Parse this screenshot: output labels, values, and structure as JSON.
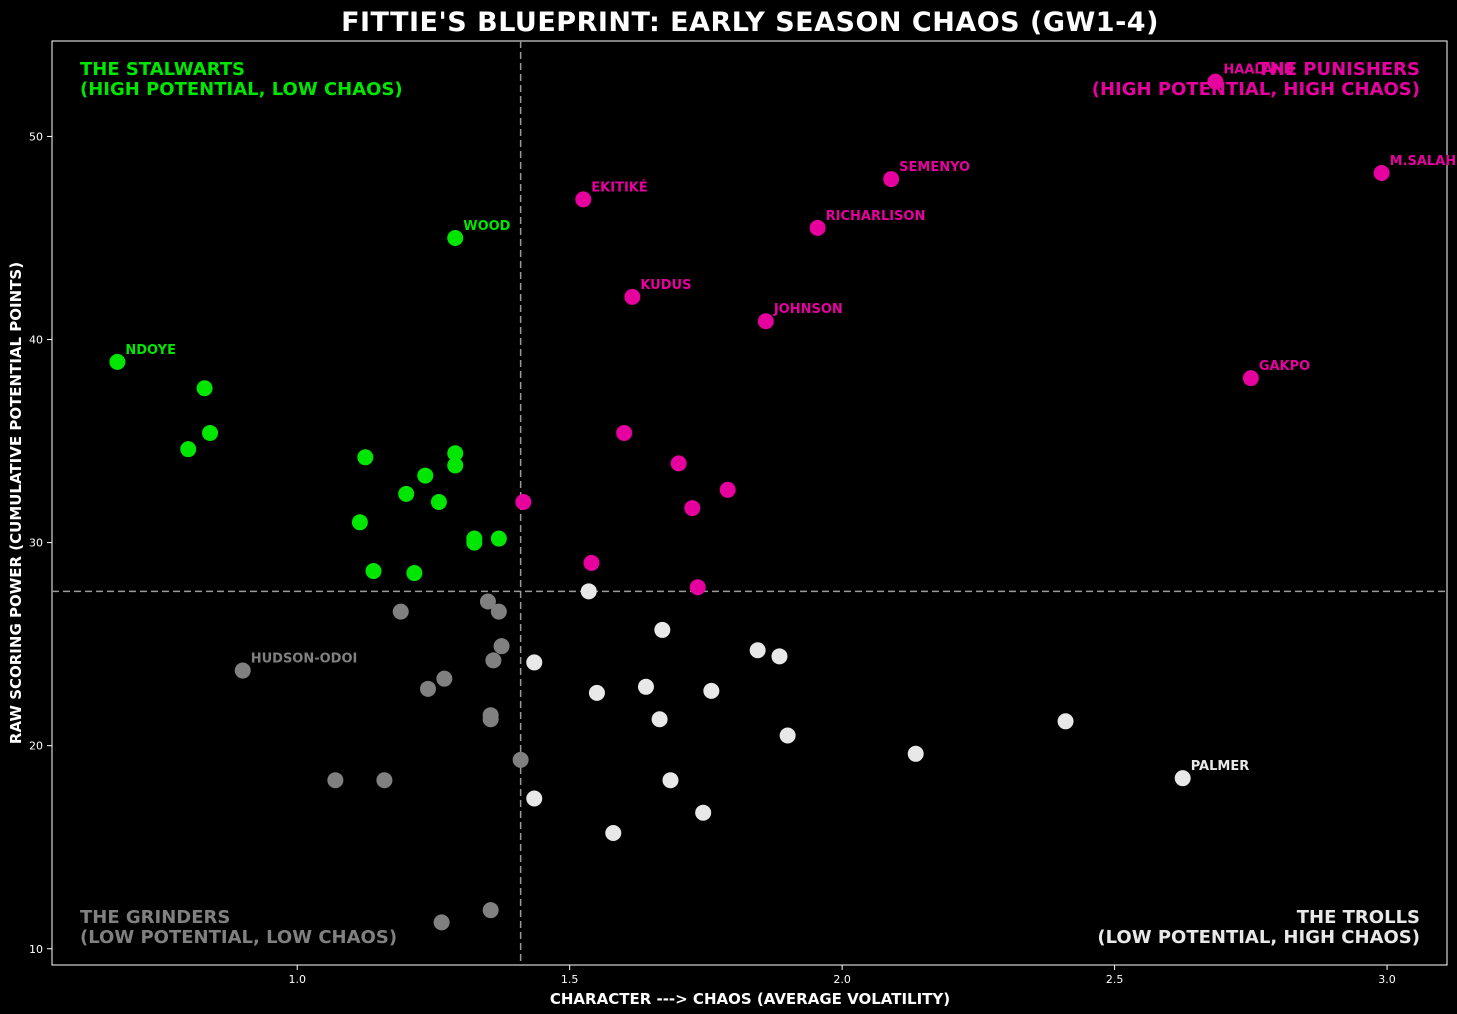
{
  "chart_data": {
    "type": "scatter",
    "title": "FITTIE'S BLUEPRINT: EARLY SEASON CHAOS (GW1-4)",
    "xlabel": "CHARACTER ---> CHAOS (AVERAGE VOLATILITY)",
    "ylabel": "RAW SCORING POWER (CUMULATIVE POTENTIAL POINTS)",
    "xlim": [
      0.55,
      3.11
    ],
    "ylim": [
      9.2,
      54.7
    ],
    "xticks": [
      1.0,
      1.5,
      2.0,
      2.5,
      3.0
    ],
    "xtick_labels": [
      "1.0",
      "1.5",
      "2.0",
      "2.5",
      "3.0"
    ],
    "yticks": [
      10,
      20,
      30,
      40,
      50
    ],
    "ytick_labels": [
      "10",
      "20",
      "30",
      "40",
      "50"
    ],
    "grid": false,
    "reference_lines": {
      "x": 1.41,
      "y": 27.6
    },
    "colors": {
      "stalwarts": "#00e600",
      "punishers": "#e6009e",
      "grinders": "#808080",
      "trolls": "#e8e8e8"
    },
    "quadrants": [
      {
        "key": "stalwarts",
        "line1": "THE STALWARTS",
        "line2": "(HIGH POTENTIAL, LOW CHAOS)",
        "position": "top-left"
      },
      {
        "key": "punishers",
        "line1": "THE PUNISHERS",
        "line2": "(HIGH POTENTIAL, HIGH CHAOS)",
        "position": "top-right"
      },
      {
        "key": "grinders",
        "line1": "THE GRINDERS",
        "line2": "(LOW POTENTIAL, LOW CHAOS)",
        "position": "bottom-left"
      },
      {
        "key": "trolls",
        "line1": "THE TROLLS",
        "line2": "(LOW POTENTIAL, HIGH CHAOS)",
        "position": "bottom-right"
      }
    ],
    "points": [
      {
        "x": 0.67,
        "y": 38.9,
        "group": "stalwarts",
        "label": "NDOYE"
      },
      {
        "x": 0.83,
        "y": 37.6,
        "group": "stalwarts"
      },
      {
        "x": 0.8,
        "y": 34.6,
        "group": "stalwarts"
      },
      {
        "x": 0.84,
        "y": 35.4,
        "group": "stalwarts"
      },
      {
        "x": 1.29,
        "y": 45.0,
        "group": "stalwarts",
        "label": "WOOD"
      },
      {
        "x": 1.125,
        "y": 34.2,
        "group": "stalwarts"
      },
      {
        "x": 1.29,
        "y": 34.4,
        "group": "stalwarts"
      },
      {
        "x": 1.29,
        "y": 33.8,
        "group": "stalwarts"
      },
      {
        "x": 1.235,
        "y": 33.3,
        "group": "stalwarts"
      },
      {
        "x": 1.2,
        "y": 32.4,
        "group": "stalwarts"
      },
      {
        "x": 1.26,
        "y": 32.0,
        "group": "stalwarts"
      },
      {
        "x": 1.115,
        "y": 31.0,
        "group": "stalwarts"
      },
      {
        "x": 1.325,
        "y": 30.2,
        "group": "stalwarts"
      },
      {
        "x": 1.325,
        "y": 30.0,
        "group": "stalwarts"
      },
      {
        "x": 1.37,
        "y": 30.2,
        "group": "stalwarts"
      },
      {
        "x": 1.14,
        "y": 28.6,
        "group": "stalwarts"
      },
      {
        "x": 1.215,
        "y": 28.5,
        "group": "stalwarts"
      },
      {
        "x": 2.685,
        "y": 52.7,
        "group": "punishers",
        "label": "HAALAND"
      },
      {
        "x": 2.09,
        "y": 47.9,
        "group": "punishers",
        "label": "SEMENYO"
      },
      {
        "x": 2.99,
        "y": 48.2,
        "group": "punishers",
        "label": "M.SALAH"
      },
      {
        "x": 1.525,
        "y": 46.9,
        "group": "punishers",
        "label": "EKITIKÉ"
      },
      {
        "x": 1.955,
        "y": 45.5,
        "group": "punishers",
        "label": "RICHARLISON"
      },
      {
        "x": 1.615,
        "y": 42.1,
        "group": "punishers",
        "label": "KUDUS"
      },
      {
        "x": 1.86,
        "y": 40.9,
        "group": "punishers",
        "label": "JOHNSON"
      },
      {
        "x": 2.75,
        "y": 38.1,
        "group": "punishers",
        "label": "GAKPO"
      },
      {
        "x": 1.6,
        "y": 35.4,
        "group": "punishers"
      },
      {
        "x": 1.7,
        "y": 33.9,
        "group": "punishers"
      },
      {
        "x": 1.79,
        "y": 32.6,
        "group": "punishers"
      },
      {
        "x": 1.415,
        "y": 32.0,
        "group": "punishers"
      },
      {
        "x": 1.725,
        "y": 31.7,
        "group": "punishers"
      },
      {
        "x": 1.54,
        "y": 29.0,
        "group": "punishers"
      },
      {
        "x": 1.735,
        "y": 27.8,
        "group": "punishers"
      },
      {
        "x": 0.9,
        "y": 23.7,
        "group": "grinders",
        "label": "HUDSON-ODOI"
      },
      {
        "x": 1.35,
        "y": 27.1,
        "group": "grinders"
      },
      {
        "x": 1.19,
        "y": 26.6,
        "group": "grinders"
      },
      {
        "x": 1.37,
        "y": 26.6,
        "group": "grinders"
      },
      {
        "x": 1.375,
        "y": 24.9,
        "group": "grinders"
      },
      {
        "x": 1.36,
        "y": 24.2,
        "group": "grinders"
      },
      {
        "x": 1.27,
        "y": 23.3,
        "group": "grinders"
      },
      {
        "x": 1.24,
        "y": 22.8,
        "group": "grinders"
      },
      {
        "x": 1.355,
        "y": 21.5,
        "group": "grinders"
      },
      {
        "x": 1.355,
        "y": 21.3,
        "group": "grinders"
      },
      {
        "x": 1.41,
        "y": 19.3,
        "group": "grinders"
      },
      {
        "x": 1.07,
        "y": 18.3,
        "group": "grinders"
      },
      {
        "x": 1.16,
        "y": 18.3,
        "group": "grinders"
      },
      {
        "x": 1.355,
        "y": 11.9,
        "group": "grinders"
      },
      {
        "x": 1.265,
        "y": 11.3,
        "group": "grinders"
      },
      {
        "x": 2.625,
        "y": 18.4,
        "group": "trolls",
        "label": "PALMER"
      },
      {
        "x": 1.535,
        "y": 27.6,
        "group": "trolls"
      },
      {
        "x": 1.67,
        "y": 25.7,
        "group": "trolls"
      },
      {
        "x": 1.845,
        "y": 24.7,
        "group": "trolls"
      },
      {
        "x": 1.885,
        "y": 24.4,
        "group": "trolls"
      },
      {
        "x": 1.435,
        "y": 24.1,
        "group": "trolls"
      },
      {
        "x": 1.64,
        "y": 22.9,
        "group": "trolls"
      },
      {
        "x": 1.76,
        "y": 22.7,
        "group": "trolls"
      },
      {
        "x": 1.55,
        "y": 22.6,
        "group": "trolls"
      },
      {
        "x": 1.665,
        "y": 21.3,
        "group": "trolls"
      },
      {
        "x": 2.41,
        "y": 21.2,
        "group": "trolls"
      },
      {
        "x": 1.9,
        "y": 20.5,
        "group": "trolls"
      },
      {
        "x": 2.135,
        "y": 19.6,
        "group": "trolls"
      },
      {
        "x": 1.685,
        "y": 18.3,
        "group": "trolls"
      },
      {
        "x": 1.435,
        "y": 17.4,
        "group": "trolls"
      },
      {
        "x": 1.745,
        "y": 16.7,
        "group": "trolls"
      },
      {
        "x": 1.58,
        "y": 15.7,
        "group": "trolls"
      }
    ]
  }
}
